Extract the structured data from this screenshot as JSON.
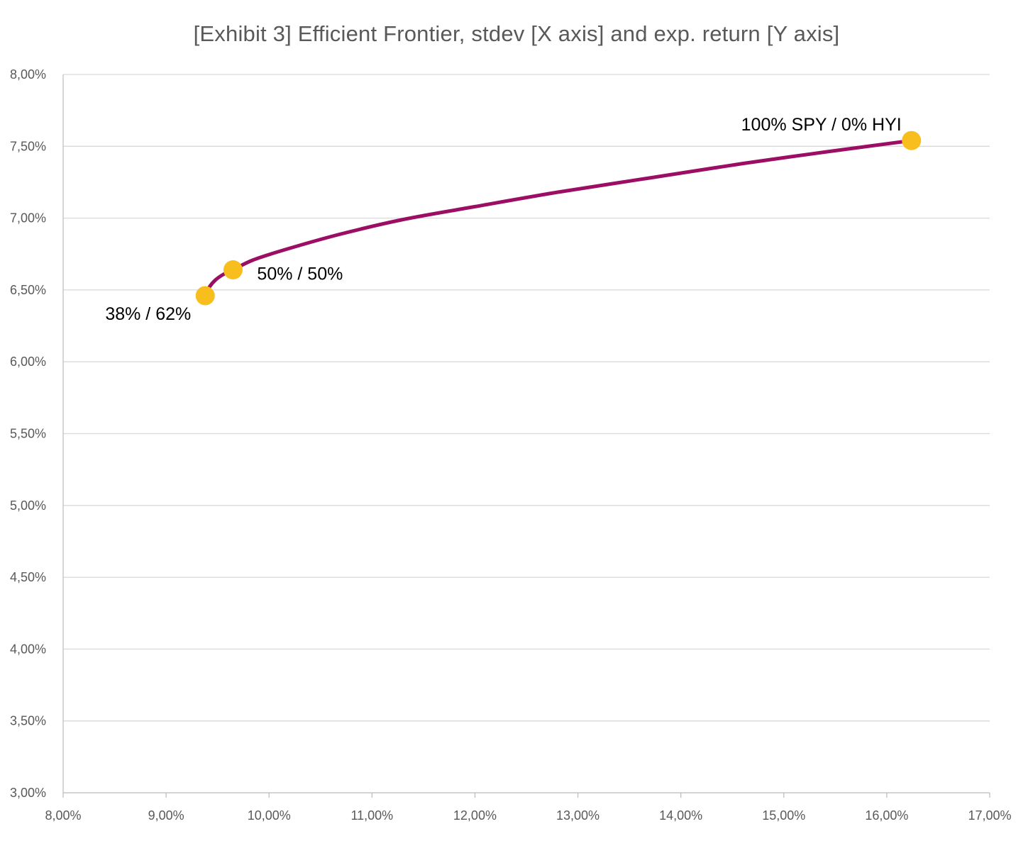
{
  "chart_data": {
    "type": "line",
    "title": "[Exhibit 3] Efficient Frontier, stdev [X axis] and exp. return [Y axis]",
    "xlabel": "",
    "ylabel": "",
    "xlim": [
      8.0,
      17.0
    ],
    "ylim": [
      3.0,
      8.0
    ],
    "x_ticks": [
      8,
      9,
      10,
      11,
      12,
      13,
      14,
      15,
      16,
      17
    ],
    "x_tick_labels": [
      "8,00%",
      "9,00%",
      "10,00%",
      "11,00%",
      "12,00%",
      "13,00%",
      "14,00%",
      "15,00%",
      "16,00%",
      "17,00%"
    ],
    "y_ticks": [
      3.0,
      3.5,
      4.0,
      4.5,
      5.0,
      5.5,
      6.0,
      6.5,
      7.0,
      7.5,
      8.0
    ],
    "y_tick_labels": [
      "3,00%",
      "3,50%",
      "4,00%",
      "4,50%",
      "5,00%",
      "5,50%",
      "6,00%",
      "6,50%",
      "7,00%",
      "7,50%",
      "8,00%"
    ],
    "grid": true,
    "line_color": "#9B0E63",
    "marker_color": "#F7BE1E",
    "series": [
      {
        "x": [
          9.38,
          9.42,
          9.48,
          9.56,
          9.65,
          9.85,
          10.2,
          10.7,
          11.3,
          12.0,
          12.8,
          13.7,
          14.6,
          15.4,
          16.24
        ],
        "y": [
          6.46,
          6.52,
          6.57,
          6.61,
          6.64,
          6.71,
          6.79,
          6.89,
          6.99,
          7.08,
          7.18,
          7.28,
          7.38,
          7.46,
          7.54
        ]
      }
    ],
    "highlighted_points": [
      {
        "x": 9.38,
        "y": 6.46,
        "label": "38% / 62%"
      },
      {
        "x": 9.65,
        "y": 6.64,
        "label": "50% / 50%"
      },
      {
        "x": 16.24,
        "y": 7.54,
        "label": "100% SPY / 0% HYI"
      }
    ]
  }
}
